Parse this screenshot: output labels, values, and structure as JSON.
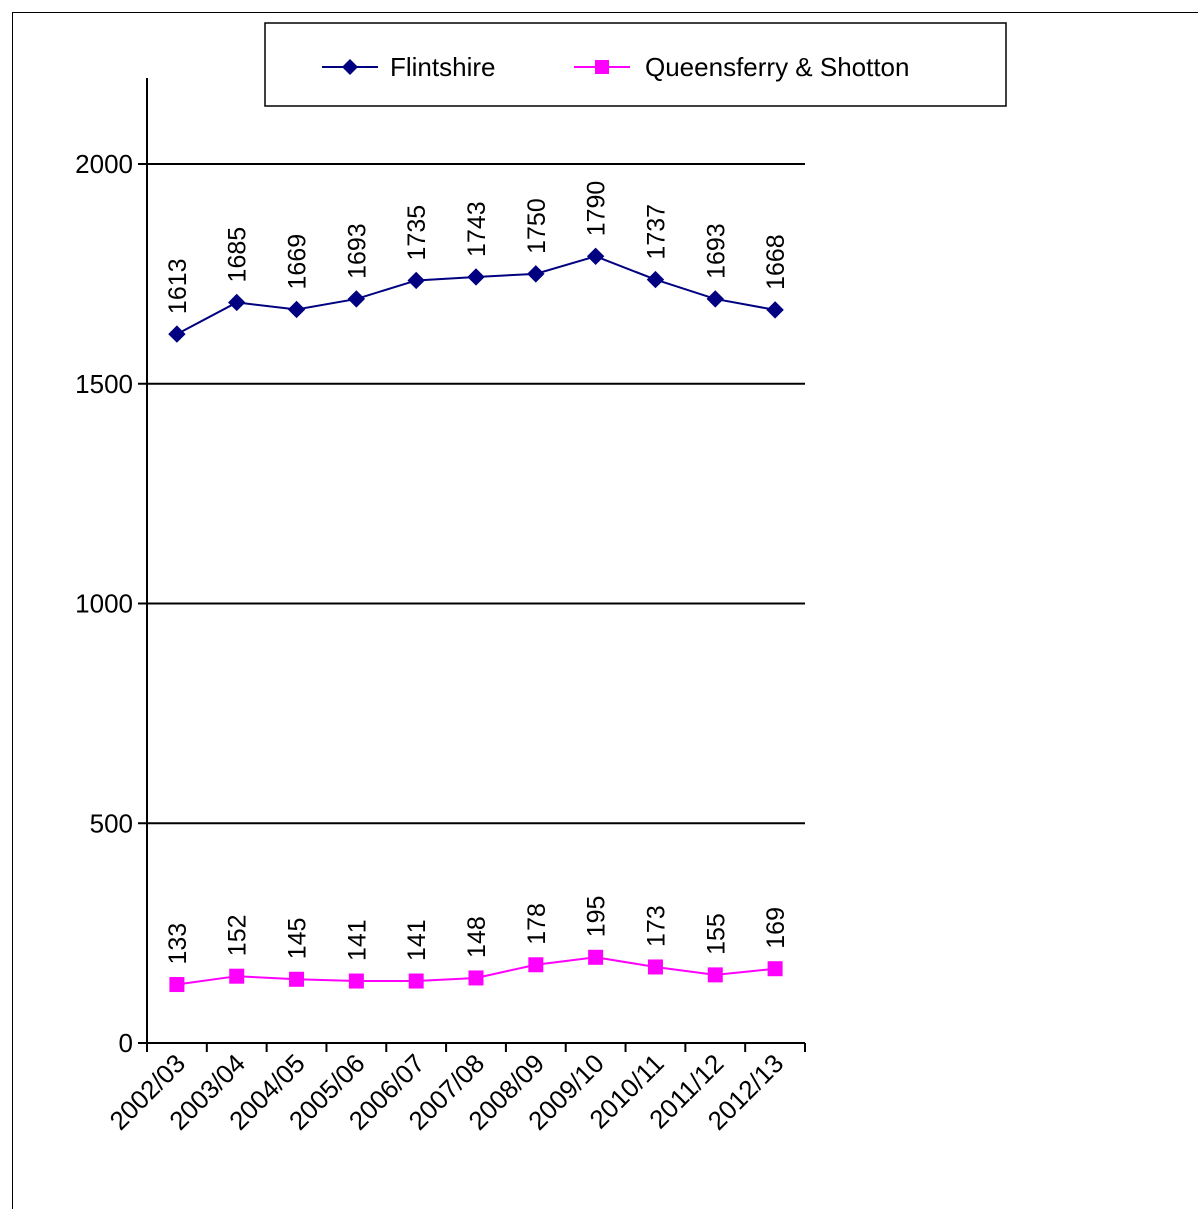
{
  "chart_data": {
    "type": "line",
    "categories": [
      "2002/03",
      "2003/04",
      "2004/05",
      "2005/06",
      "2006/07",
      "2007/08",
      "2008/09",
      "2009/10",
      "2010/11",
      "2011/12",
      "2012/13"
    ],
    "series": [
      {
        "name": "Flintshire",
        "color": "#000080",
        "marker": "diamond",
        "values": [
          1613,
          1685,
          1669,
          1693,
          1735,
          1743,
          1750,
          1790,
          1737,
          1693,
          1668
        ]
      },
      {
        "name": "Queensferry & Shotton",
        "color": "#ff00ff",
        "marker": "square",
        "values": [
          133,
          152,
          145,
          141,
          141,
          148,
          178,
          195,
          173,
          155,
          169
        ]
      }
    ],
    "y_ticks": [
      0,
      500,
      1000,
      1500,
      2000
    ],
    "ylim": [
      0,
      2200
    ],
    "grid": true,
    "legend_position": "top"
  }
}
